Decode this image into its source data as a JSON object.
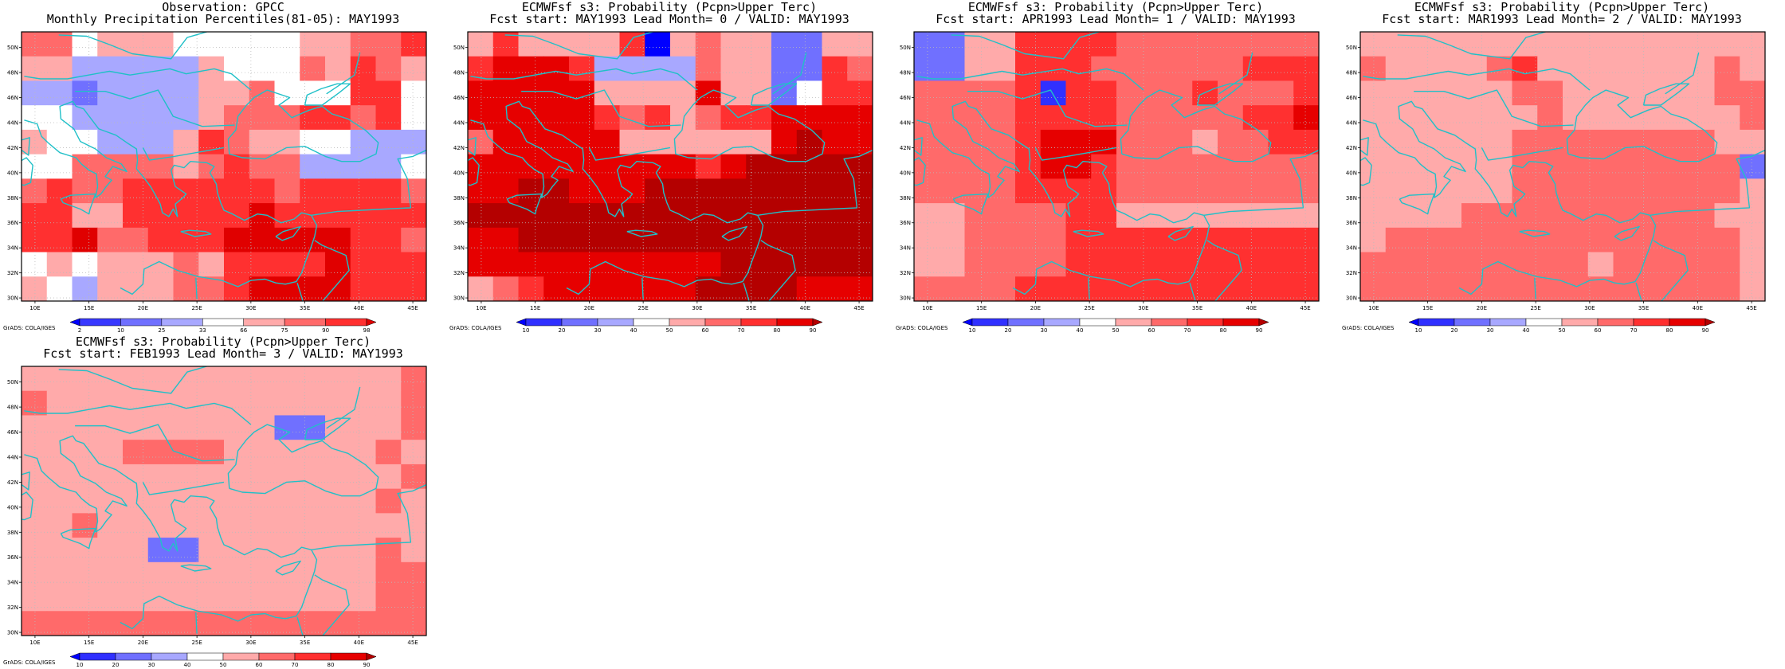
{
  "colors": {
    "coast": "#20c0c8",
    "grid": "#bbbbbb",
    "frame": "#000000"
  },
  "obs_scale": {
    "labels": [
      "2",
      "10",
      "25",
      "33",
      "66",
      "75",
      "90",
      "98"
    ],
    "colors": [
      "#0000ff",
      "#3838ff",
      "#7070ff",
      "#a8a8ff",
      "#ffffff",
      "#ffaaaa",
      "#ff6a6a",
      "#ff3030",
      "#e00000"
    ]
  },
  "prob_scale": {
    "labels": [
      "10",
      "20",
      "30",
      "40",
      "50",
      "60",
      "70",
      "80",
      "90"
    ],
    "colors": [
      "#0000ff",
      "#3030ff",
      "#7070ff",
      "#a8a8ff",
      "#ffffff",
      "#ffaaaa",
      "#ff6a6a",
      "#ff3030",
      "#e60000",
      "#b40000"
    ]
  },
  "axes": {
    "x_ticks": [
      "10E",
      "15E",
      "20E",
      "25E",
      "30E",
      "35E",
      "40E",
      "45E"
    ],
    "y_ticks": [
      "30N",
      "32N",
      "34N",
      "36N",
      "38N",
      "40N",
      "42N",
      "44N",
      "46N",
      "48N",
      "50N"
    ]
  },
  "panels": [
    {
      "title1": "Observation: GPCC",
      "title2": "Monthly Precipitation Percentiles(81-05): MAY1993",
      "credit": "GrADS: COLA/IGES",
      "scale": "obs",
      "chart_data": {
        "type": "heatmap",
        "title": "Observation: GPCC Monthly Precipitation Percentiles(81-05): MAY1993",
        "x_range": [
          8.75,
          46.25
        ],
        "y_range": [
          29.75,
          51.25
        ],
        "cell_deg": 2.5,
        "grid": [
          "6645554444455667",
          "5533333544465765",
          "3323333556444774",
          "4433333566677674",
          "5443335765544333",
          "4466665676633334",
          "6766777777677776",
          "7755777778777777",
          "7786677788888776",
          "4545556577778777",
          "5435556678888777"
        ]
      }
    },
    {
      "title1": "ECMWFsf s3: Probability (Pcpn>Upper Terc)",
      "title2": "Fcst start: MAY1993   Lead Month= 0 / VALID: MAY1993",
      "credit": "GrADS: COLA/IGES",
      "scale": "prob",
      "chart_data": {
        "type": "heatmap",
        "title": "ECMWFsf s3: Probability (Pcpn>Upper Terc) Fcst start: MAY1993 Lead Month= 0 / VALID: MAY1993",
        "x_range": [
          8.75,
          46.25
        ],
        "y_range": [
          29.75,
          51.25
        ],
        "cell_deg": 2.5,
        "grid": [
          "5755557056552255",
          "7888733336552276",
          "8888855558552477",
          "8888876756778888",
          "6888885555558988",
          "8888888887899999",
          "8899888999999999",
          "9999999999999999",
          "8899999999999999",
          "8888888888999999",
          "5678888889999888"
        ]
      }
    },
    {
      "title1": "ECMWFsf s3: Probability (Pcpn>Upper Terc)",
      "title2": "Fcst start: APR1993   Lead Month= 1 / VALID: MAY1993",
      "credit": "GrADS: COLA/IGES",
      "scale": "prob",
      "chart_data": {
        "type": "heatmap",
        "title": "ECMWFsf s3: Probability (Pcpn>Upper Terc) Fcst start: APR1993 Lead Month= 1 / VALID: MAY1993",
        "x_range": [
          8.75,
          46.25
        ],
        "y_range": [
          29.75,
          51.25
        ],
        "cell_deg": 2.5,
        "grid": [
          "2255777766666666",
          "2255777666666777",
          "6666717766676667",
          "6666777766666778",
          "6666788866656677",
          "6666788766666666",
          "6666777766666666",
          "5566667755555555",
          "5566667777777777",
          "5566667777777777",
          "6666777777777777"
        ]
      }
    },
    {
      "title1": "ECMWFsf s3: Probability (Pcpn>Upper Terc)",
      "title2": "Fcst start: MAR1993   Lead Month= 2 / VALID: MAY1993",
      "credit": "GrADS: COLA/IGES",
      "scale": "prob",
      "chart_data": {
        "type": "heatmap",
        "title": "ECMWFsf s3: Probability (Pcpn>Upper Terc) Fcst start: MAR1993 Lead Month= 2 / VALID: MAY1993",
        "x_range": [
          8.75,
          46.25
        ],
        "y_range": [
          29.75,
          51.25
        ],
        "cell_deg": 2.5,
        "grid": [
          "5555555555555555",
          "6555567555555565",
          "5555556655555566",
          "5555555655555556",
          "5555556666666655",
          "5555556666666662",
          "5555556666666665",
          "5555666666666655",
          "5666666666666665",
          "6666666665666665",
          "6666666666666665"
        ]
      }
    },
    {
      "title1": "ECMWFsf s3: Probability (Pcpn>Upper Terc)",
      "title2": "Fcst start: FEB1993   Lead Month= 3 / VALID: MAY1993",
      "credit": "GrADS: COLA/IGES",
      "scale": "prob",
      "chart_data": {
        "type": "heatmap",
        "title": "ECMWFsf s3: Probability (Pcpn>Upper Terc) Fcst start: FEB1993 Lead Month= 3 / VALID: MAY1993",
        "x_range": [
          8.75,
          46.25
        ],
        "y_range": [
          29.75,
          51.25
        ],
        "cell_deg": 2.5,
        "grid": [
          "5555555555555556",
          "6555555555555556",
          "5555555555225556",
          "5555666655555565",
          "5555555555555556",
          "5555555555555565",
          "5565555555555555",
          "5555522555555565",
          "5555555555555566",
          "5555555555555566",
          "6666666666666666"
        ]
      }
    }
  ]
}
